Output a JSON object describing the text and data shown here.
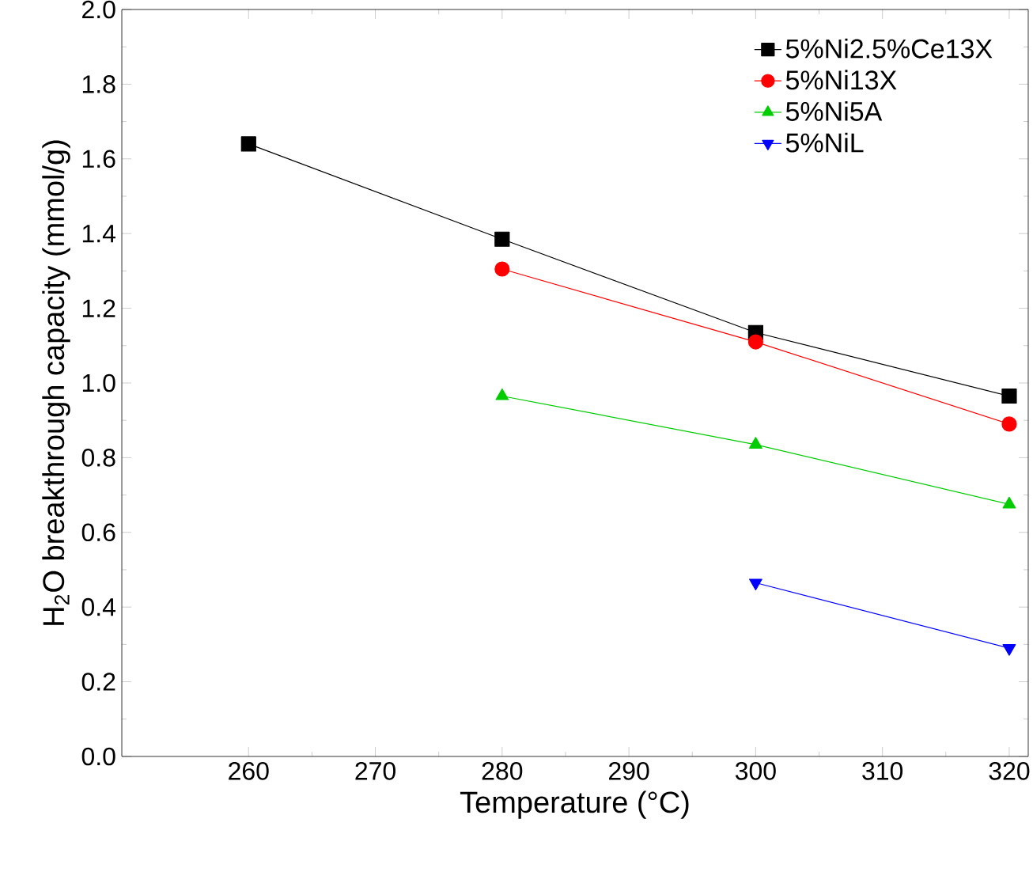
{
  "chart_data": {
    "type": "line",
    "xlabel": "Temperature (°C)",
    "ylabel": "H$_{2}$O breakthrough capacity (mmol/g)",
    "xlim": [
      250,
      321.5
    ],
    "ylim": [
      0,
      2.0
    ],
    "xticks": [
      260,
      270,
      280,
      290,
      300,
      310,
      320
    ],
    "yticks": [
      {
        "value": 0,
        "label": "0.0"
      },
      0.2,
      0.4,
      0.6,
      0.8,
      {
        "value": 1.0,
        "label": "1.0"
      },
      1.2,
      1.4,
      1.6,
      1.8,
      {
        "value": 2.0,
        "label": "2.0"
      }
    ],
    "legend": "top right",
    "grid": false,
    "line_style": "solid",
    "series": [
      {
        "name": "5%Ni2.5%Ce13X",
        "color": "#000000",
        "marker": "square",
        "x": [
          260,
          280,
          300,
          320
        ],
        "values": [
          1.64,
          1.385,
          1.135,
          0.965
        ]
      },
      {
        "name": "5%Ni13X",
        "color": "#ff0000",
        "marker": "circle",
        "x": [
          280,
          300,
          320
        ],
        "values": [
          1.305,
          1.11,
          0.89
        ]
      },
      {
        "name": "5%Ni5A",
        "color": "#00cc00",
        "marker": "triangle",
        "x": [
          280,
          300,
          320
        ],
        "values": [
          0.965,
          0.835,
          0.675
        ]
      },
      {
        "name": "5%NiL",
        "color": "#0000ff",
        "marker": "triangle down",
        "x": [
          300,
          320
        ],
        "values": [
          0.465,
          0.29
        ]
      }
    ]
  }
}
